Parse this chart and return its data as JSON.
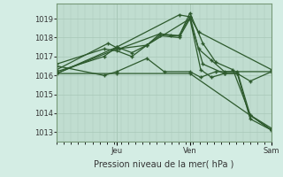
{
  "xlabel": "Pression niveau de la mer( hPa )",
  "bg_color": "#d4ede4",
  "plot_bg_color": "#c0ddd0",
  "grid_color": "#a8c8b8",
  "line_color": "#2d5a2d",
  "ylim": [
    1012.5,
    1019.8
  ],
  "yticks": [
    1013,
    1014,
    1015,
    1016,
    1017,
    1018,
    1019
  ],
  "day_positions": [
    0.28,
    0.62,
    1.0
  ],
  "day_labels": [
    "Jeu",
    "Ven",
    "Sam"
  ],
  "lines": [
    {
      "x": [
        0.0,
        0.28,
        0.57,
        0.62,
        0.66,
        1.0
      ],
      "y": [
        1016.1,
        1017.5,
        1019.2,
        1019.1,
        1018.3,
        1016.3
      ]
    },
    {
      "x": [
        0.0,
        0.24,
        0.29,
        0.48,
        0.57,
        0.62,
        0.68,
        0.74,
        0.82,
        0.9,
        1.0
      ],
      "y": [
        1016.3,
        1017.7,
        1017.4,
        1018.2,
        1018.1,
        1019.3,
        1017.7,
        1016.7,
        1016.3,
        1013.9,
        1013.1
      ]
    },
    {
      "x": [
        0.0,
        0.22,
        0.28,
        0.35,
        0.42,
        0.48,
        0.53,
        0.57,
        0.62,
        0.66,
        0.72,
        0.78,
        0.84,
        0.9,
        1.0
      ],
      "y": [
        1016.2,
        1017.0,
        1017.5,
        1017.2,
        1017.6,
        1018.2,
        1018.1,
        1018.1,
        1019.1,
        1017.4,
        1016.8,
        1016.2,
        1016.2,
        1013.9,
        1013.2
      ]
    },
    {
      "x": [
        0.0,
        0.22,
        0.28,
        0.35,
        0.42,
        0.48,
        0.57,
        0.62,
        0.68,
        0.78,
        0.84,
        0.9,
        1.0
      ],
      "y": [
        1016.6,
        1017.4,
        1017.3,
        1017.0,
        1017.6,
        1018.1,
        1018.0,
        1019.0,
        1016.6,
        1016.1,
        1016.1,
        1015.7,
        1016.2
      ]
    },
    {
      "x": [
        0.0,
        0.28,
        0.62,
        1.0
      ],
      "y": [
        1016.1,
        1016.1,
        1016.1,
        1013.1
      ]
    },
    {
      "x": [
        0.0,
        0.22,
        0.28,
        0.42,
        0.5,
        0.62,
        0.67,
        0.74,
        1.0
      ],
      "y": [
        1016.5,
        1016.0,
        1016.2,
        1016.9,
        1016.2,
        1016.2,
        1015.9,
        1016.2,
        1016.2
      ]
    },
    {
      "x": [
        0.0,
        0.28,
        0.42,
        0.62,
        0.67,
        0.72,
        0.78,
        0.84,
        0.9,
        1.0
      ],
      "y": [
        1016.1,
        1017.4,
        1017.6,
        1019.0,
        1016.3,
        1015.9,
        1016.1,
        1016.1,
        1013.7,
        1013.1
      ]
    }
  ]
}
